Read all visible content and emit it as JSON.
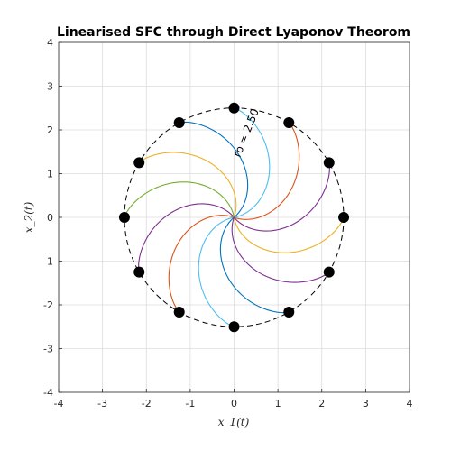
{
  "chart_data": {
    "type": "line",
    "title": "Linearised SFC through Direct Lyaponov Theorom",
    "xlabel": "x_1(t)",
    "ylabel": "x_2(t)",
    "xlim": [
      -4,
      4
    ],
    "ylim": [
      -4,
      4
    ],
    "xticks": [
      -4,
      -3,
      -2,
      -1,
      0,
      1,
      2,
      3,
      4
    ],
    "yticks": [
      -4,
      -3,
      -2,
      -1,
      0,
      1,
      2,
      3,
      4
    ],
    "grid": true,
    "circle": {
      "center": [
        0,
        0
      ],
      "radius": 2.5,
      "style": "dashed",
      "color": "#000000"
    },
    "annotation": {
      "text": "ro = 2.50",
      "position": [
        0.35,
        1.9
      ],
      "rotation_deg": -68
    },
    "swirl_deg": 80,
    "start_points": [
      {
        "angle_deg": 0,
        "color": "#EDB120"
      },
      {
        "angle_deg": 30,
        "color": "#7E2F8E"
      },
      {
        "angle_deg": 60,
        "color": "#D95319"
      },
      {
        "angle_deg": 90,
        "color": "#4DBEEE"
      },
      {
        "angle_deg": 120,
        "color": "#0072BD"
      },
      {
        "angle_deg": 150,
        "color": "#EDB120"
      },
      {
        "angle_deg": 180,
        "color": "#77AC30"
      },
      {
        "angle_deg": 210,
        "color": "#7E2F8E"
      },
      {
        "angle_deg": 240,
        "color": "#D95319"
      },
      {
        "angle_deg": 270,
        "color": "#4DBEEE"
      },
      {
        "angle_deg": 300,
        "color": "#0072BD"
      },
      {
        "angle_deg": 330,
        "color": "#7E2F8E"
      }
    ]
  }
}
